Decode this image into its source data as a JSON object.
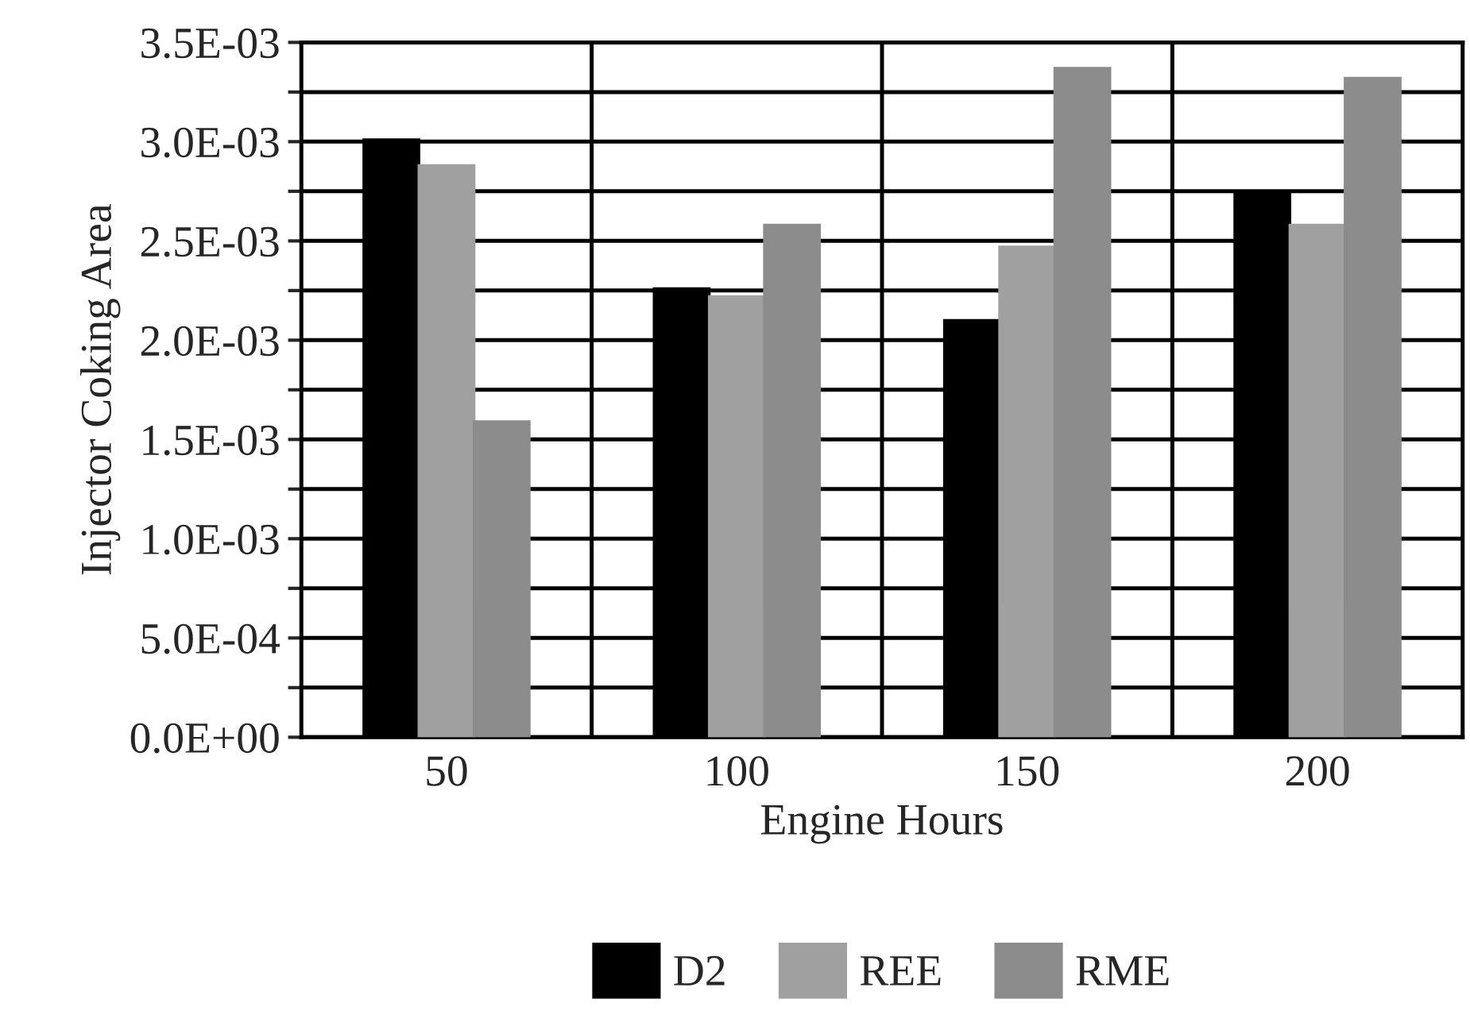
{
  "chart_data": {
    "type": "bar",
    "xlabel": "Engine Hours",
    "ylabel": "Injector Coking Area",
    "categories": [
      "50",
      "100",
      "150",
      "200"
    ],
    "series": [
      {
        "name": "D2",
        "color": "#000000",
        "values": [
          0.00301,
          0.00226,
          0.0021,
          0.00274
        ]
      },
      {
        "name": "REE",
        "color": "#a0a0a0",
        "values": [
          0.00288,
          0.00222,
          0.00247,
          0.00258
        ]
      },
      {
        "name": "RME",
        "color": "#8c8c8c",
        "values": [
          0.00159,
          0.00258,
          0.00337,
          0.00332
        ]
      }
    ],
    "ylim": [
      0,
      0.0035
    ],
    "yticks": [
      {
        "value": 0,
        "label": "0.0E+00"
      },
      {
        "value": 0.00025,
        "label": null
      },
      {
        "value": 0.0005,
        "label": "5.0E-04"
      },
      {
        "value": 0.00075,
        "label": null
      },
      {
        "value": 0.001,
        "label": "1.0E-03"
      },
      {
        "value": 0.00125,
        "label": null
      },
      {
        "value": 0.0015,
        "label": "1.5E-03"
      },
      {
        "value": 0.00175,
        "label": null
      },
      {
        "value": 0.002,
        "label": "2.0E-03"
      },
      {
        "value": 0.00225,
        "label": null
      },
      {
        "value": 0.0025,
        "label": "2.5E-03"
      },
      {
        "value": 0.00275,
        "label": null
      },
      {
        "value": 0.003,
        "label": "3.0E-03"
      },
      {
        "value": 0.00325,
        "label": null
      },
      {
        "value": 0.0035,
        "label": "3.5E-03"
      }
    ],
    "grid": true,
    "legend": "bottom"
  }
}
